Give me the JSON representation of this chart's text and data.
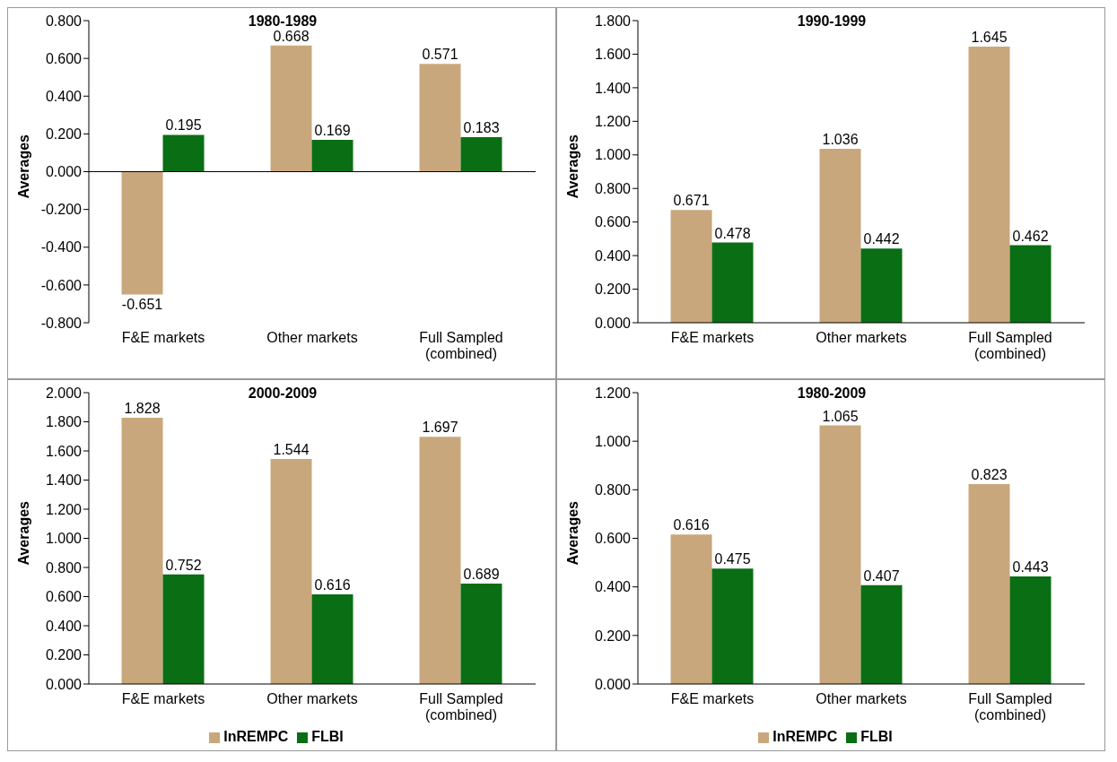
{
  "chart_data": [
    {
      "type": "bar",
      "title": "1980-1989",
      "ylabel": "Averages",
      "categories": [
        "F&E markets",
        "Other markets",
        "Full Sampled (combined)"
      ],
      "series": [
        {
          "color": "#c9a77c",
          "values": [
            -0.651,
            0.668,
            0.571
          ]
        },
        {
          "color": "#0a6e14",
          "values": [
            0.195,
            0.169,
            0.183
          ]
        }
      ],
      "ylim": [
        -0.8,
        0.8
      ],
      "yticks": [
        {
          "value": -0.8,
          "label": "-0.800"
        },
        {
          "value": -0.6,
          "label": "-0.600"
        },
        {
          "value": -0.4,
          "label": "-0.400"
        },
        {
          "value": -0.2,
          "label": "-0.200"
        },
        {
          "value": 0,
          "label": "0.000"
        },
        {
          "value": 0.2,
          "label": "0.200"
        },
        {
          "value": 0.4,
          "label": "0.400"
        },
        {
          "value": 0.6,
          "label": "0.600"
        },
        {
          "value": 0.8,
          "label": "0.800"
        }
      ],
      "ref_lines": [
        {
          "axis": "y",
          "value": 0
        }
      ],
      "data_labels": true,
      "grid": false,
      "legend": false
    },
    {
      "type": "bar",
      "title": "1990-1999",
      "ylabel": "Averages",
      "categories": [
        "F&E markets",
        "Other markets",
        "Full Sampled (combined)"
      ],
      "series": [
        {
          "color": "#c9a77c",
          "values": [
            0.671,
            1.036,
            1.645
          ]
        },
        {
          "color": "#0a6e14",
          "values": [
            0.478,
            0.442,
            0.462
          ]
        }
      ],
      "ylim": [
        0,
        1.8
      ],
      "yticks": [
        {
          "value": 0,
          "label": "0.000"
        },
        {
          "value": 0.2,
          "label": "0.200"
        },
        {
          "value": 0.4,
          "label": "0.400"
        },
        {
          "value": 0.6,
          "label": "0.600"
        },
        {
          "value": 0.8,
          "label": "0.800"
        },
        {
          "value": 1.0,
          "label": "1.000"
        },
        {
          "value": 1.2,
          "label": "1.200"
        },
        {
          "value": 1.4,
          "label": "1.400"
        },
        {
          "value": 1.6,
          "label": "1.600"
        },
        {
          "value": 1.8,
          "label": "1.800"
        }
      ],
      "data_labels": true,
      "grid": false,
      "legend": false
    },
    {
      "type": "bar",
      "title": "2000-2009",
      "ylabel": "Averages",
      "categories": [
        "F&E markets",
        "Other markets",
        "Full Sampled (combined)"
      ],
      "series": [
        {
          "name": "InREMPC",
          "color": "#c9a77c",
          "values": [
            1.828,
            1.544,
            1.697
          ]
        },
        {
          "name": "FLBI",
          "color": "#0a6e14",
          "values": [
            0.752,
            0.616,
            0.689
          ]
        }
      ],
      "ylim": [
        0,
        2.0
      ],
      "yticks": [
        {
          "value": 0,
          "label": "0.000"
        },
        {
          "value": 0.2,
          "label": "0.200"
        },
        {
          "value": 0.4,
          "label": "0.400"
        },
        {
          "value": 0.6,
          "label": "0.600"
        },
        {
          "value": 0.8,
          "label": "0.800"
        },
        {
          "value": 1.0,
          "label": "1.000"
        },
        {
          "value": 1.2,
          "label": "1.200"
        },
        {
          "value": 1.4,
          "label": "1.400"
        },
        {
          "value": 1.6,
          "label": "1.600"
        },
        {
          "value": 1.8,
          "label": "1.800"
        },
        {
          "value": 2.0,
          "label": "2.000"
        }
      ],
      "data_labels": true,
      "grid": false,
      "legend": "bottom"
    },
    {
      "type": "bar",
      "title": "1980-2009",
      "ylabel": "Averages",
      "categories": [
        "F&E markets",
        "Other markets",
        "Full Sampled (combined)"
      ],
      "series": [
        {
          "name": "InREMPC",
          "color": "#c9a77c",
          "values": [
            0.616,
            1.065,
            0.823
          ]
        },
        {
          "name": "FLBI",
          "color": "#0a6e14",
          "values": [
            0.475,
            0.407,
            0.443
          ]
        }
      ],
      "ylim": [
        0,
        1.2
      ],
      "yticks": [
        {
          "value": 0,
          "label": "0.000"
        },
        {
          "value": 0.2,
          "label": "0.200"
        },
        {
          "value": 0.4,
          "label": "0.400"
        },
        {
          "value": 0.6,
          "label": "0.600"
        },
        {
          "value": 0.8,
          "label": "0.800"
        },
        {
          "value": 1.0,
          "label": "1.000"
        },
        {
          "value": 1.2,
          "label": "1.200"
        }
      ],
      "data_labels": true,
      "grid": false,
      "legend": "bottom"
    }
  ]
}
